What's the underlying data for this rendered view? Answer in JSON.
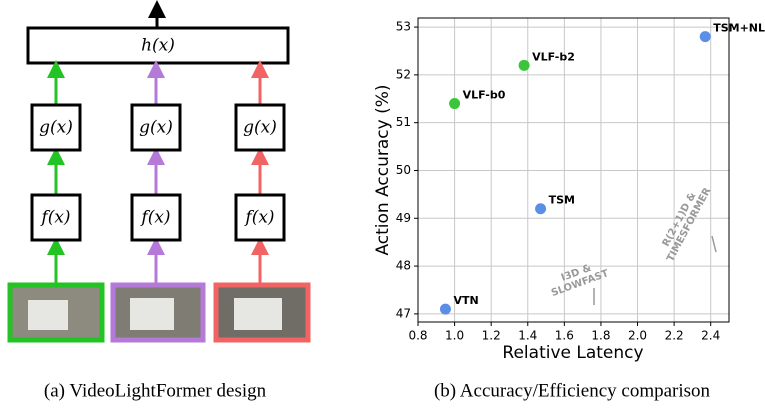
{
  "diagram": {
    "h": "h(x)",
    "columns": [
      {
        "g": "g(x)",
        "f": "f(x)"
      },
      {
        "g": "g(x)",
        "f": "f(x)"
      },
      {
        "g": "g(x)",
        "f": "f(x)"
      }
    ]
  },
  "captions": [
    "(a) VideoLightFormer design",
    "(b) Accuracy/Efficiency comparison"
  ],
  "chart_data": {
    "type": "scatter",
    "xlabel": "Relative Latency",
    "ylabel": "Action Accuracy (%)",
    "series": [
      {
        "name": "VTN",
        "color": "#5b8ee6",
        "x": [
          0.95
        ],
        "values": [
          47.1
        ]
      },
      {
        "name": "VLF-b0",
        "color": "#3cc43c",
        "x": [
          1.0
        ],
        "values": [
          51.4
        ]
      },
      {
        "name": "VLF-b2",
        "color": "#3cc43c",
        "x": [
          1.38
        ],
        "values": [
          52.2
        ]
      },
      {
        "name": "TSM",
        "color": "#5b8ee6",
        "x": [
          1.47
        ],
        "values": [
          49.2
        ]
      },
      {
        "name": "TSM+NL",
        "color": "#5b8ee6",
        "x": [
          2.37
        ],
        "values": [
          52.8
        ]
      }
    ],
    "xlim": [
      0.8,
      2.5
    ],
    "ylim": [
      46.83,
      53.19
    ],
    "xticks": [
      0.8,
      {
        "value": 1,
        "label": "1.0"
      },
      1.2,
      1.4,
      1.6,
      1.8,
      {
        "value": 2,
        "label": "2.0"
      },
      2.2,
      2.4
    ],
    "yticks": [
      47,
      48,
      49,
      50,
      51,
      52,
      53
    ],
    "grid": true,
    "annotations": [
      {
        "lines": [
          "I3D &",
          "SLOWFAST"
        ]
      },
      {
        "lines": [
          "R(2+1)D &",
          "TIMESFORMER"
        ]
      }
    ]
  }
}
